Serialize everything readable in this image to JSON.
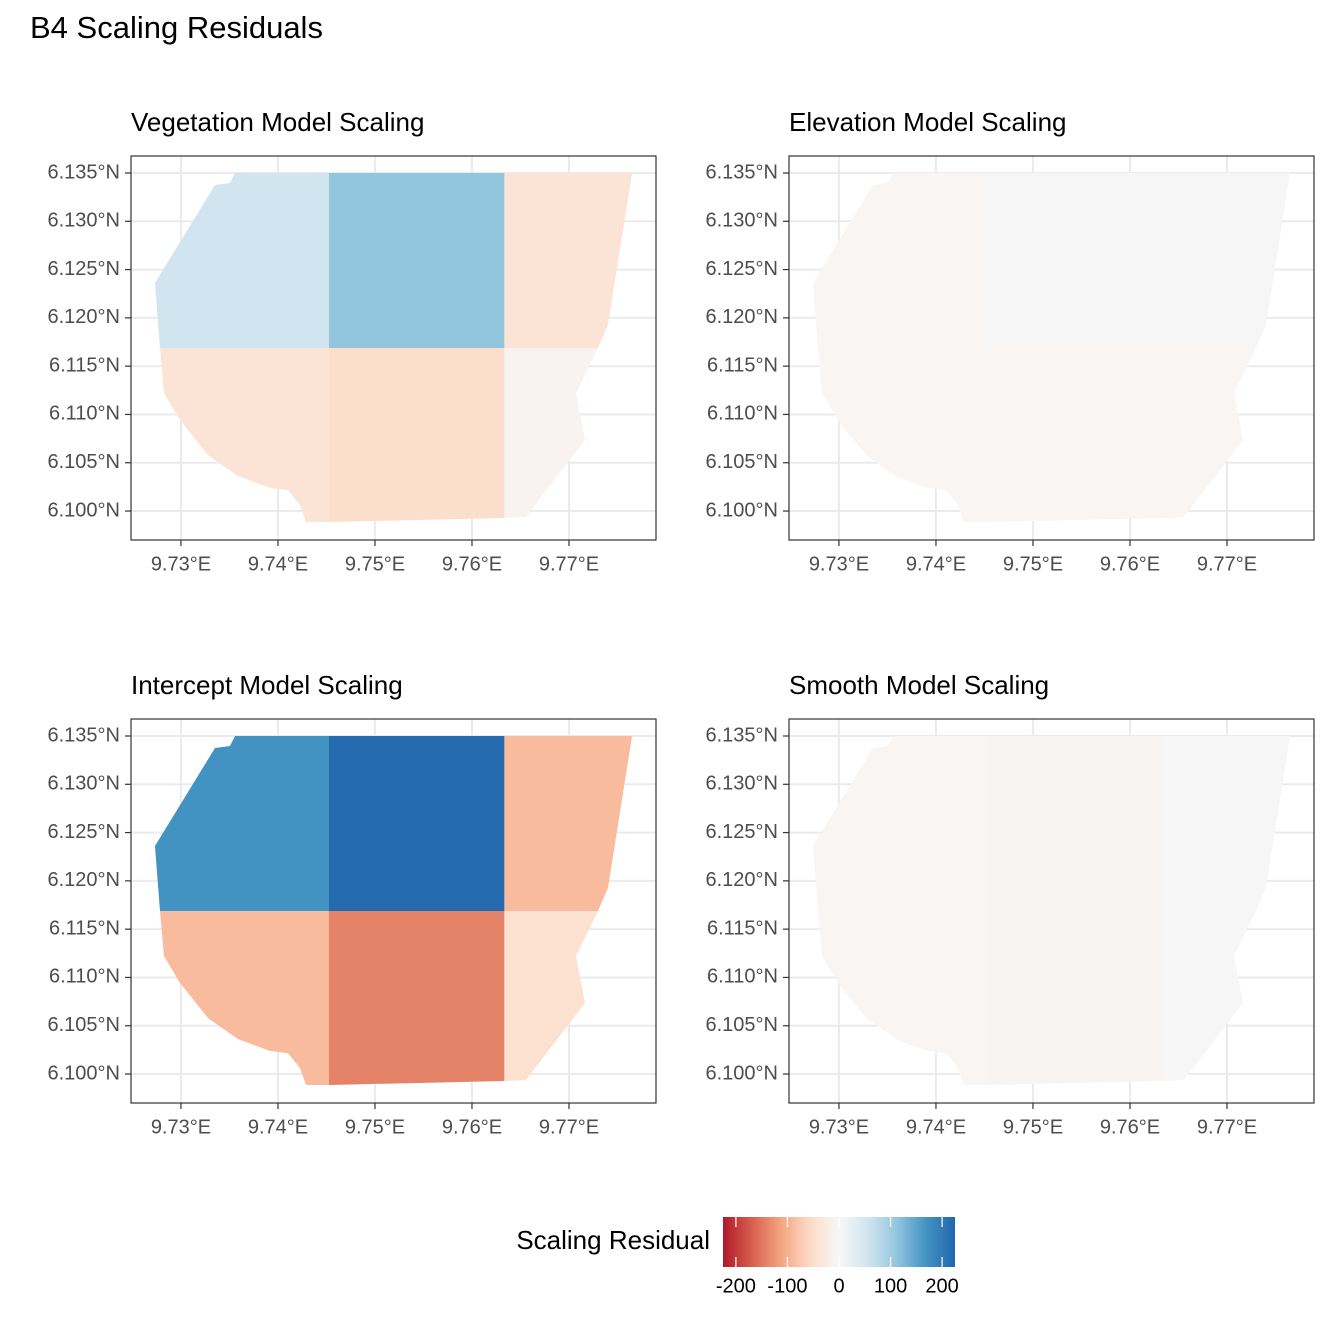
{
  "title": "B4 Scaling Residuals",
  "map": {
    "boundary_lon": [
      9.73557,
      9.7765,
      9.77402,
      9.77299,
      9.77072,
      9.77165,
      9.76556,
      9.76333,
      9.74526,
      9.74289,
      9.74227,
      9.74103,
      9.73918,
      9.73588,
      9.73278,
      9.7299,
      9.72825,
      9.72784,
      9.72732,
      9.73351,
      9.73505
    ],
    "boundary_lat": [
      6.135,
      6.135,
      6.11926,
      6.11688,
      6.11222,
      6.10735,
      6.09938,
      6.09928,
      6.09886,
      6.09886,
      6.10062,
      6.10217,
      6.10238,
      6.10362,
      6.1058,
      6.10942,
      6.11222,
      6.11688,
      6.12361,
      6.13376,
      6.13396
    ],
    "cell_lon_edges": [
      9.72,
      9.74526,
      9.76333,
      9.78
    ],
    "cell_lat_edges": [
      6.14,
      6.11688,
      6.09
    ],
    "xlim": [
      9.72485,
      9.77897
    ],
    "ylim": [
      6.097,
      6.13676
    ],
    "xticks": [
      {
        "value": 9.73,
        "label": "9.73°E"
      },
      {
        "value": 9.74,
        "label": "9.74°E"
      },
      {
        "value": 9.75,
        "label": "9.75°E"
      },
      {
        "value": 9.76,
        "label": "9.76°E"
      },
      {
        "value": 9.77,
        "label": "9.77°E"
      }
    ],
    "yticks": [
      {
        "value": 6.135,
        "label": "6.135°N"
      },
      {
        "value": 6.13,
        "label": "6.130°N"
      },
      {
        "value": 6.125,
        "label": "6.125°N"
      },
      {
        "value": 6.12,
        "label": "6.120°N"
      },
      {
        "value": 6.115,
        "label": "6.115°N"
      },
      {
        "value": 6.11,
        "label": "6.110°N"
      },
      {
        "value": 6.105,
        "label": "6.105°N"
      },
      {
        "value": 6.1,
        "label": "6.100°N"
      }
    ],
    "grid": true
  },
  "colorbar": {
    "title": "Scaling Residual",
    "limits": [
      -225,
      225
    ],
    "ticks": [
      -200,
      -100,
      0,
      100,
      200
    ],
    "colors": [
      "#b2182b",
      "#d6604d",
      "#f4a582",
      "#fddbc7",
      "#f7f7f7",
      "#d1e5f0",
      "#92c5de",
      "#4393c3",
      "#2166ac"
    ]
  },
  "chart_data": [
    {
      "type": "map",
      "title": "Vegetation Model Scaling",
      "values": [
        56,
        112,
        -40,
        -40,
        -50,
        -8
      ]
    },
    {
      "type": "map",
      "title": "Elevation Model Scaling",
      "values": [
        -5,
        2,
        2,
        -5,
        -5,
        -5
      ]
    },
    {
      "type": "map",
      "title": "Intercept Model Scaling",
      "values": [
        170,
        220,
        -90,
        -90,
        -140,
        -45
      ]
    },
    {
      "type": "map",
      "title": "Smooth Model Scaling",
      "values": [
        -5,
        -6,
        2,
        -5,
        -6,
        2
      ]
    }
  ]
}
